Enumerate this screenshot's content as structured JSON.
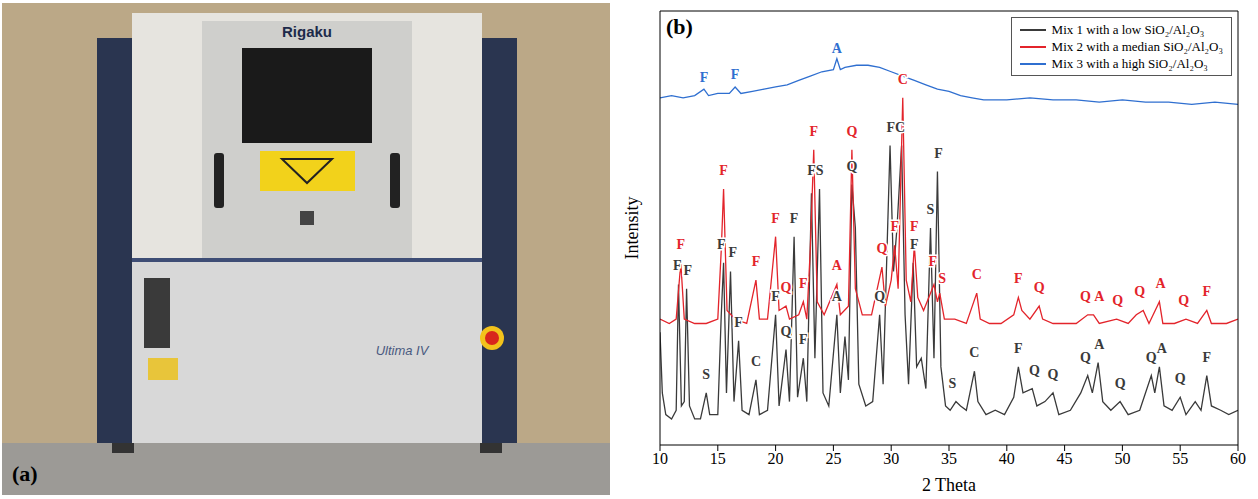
{
  "photo": {
    "label": "(a)",
    "brand": "Rigaku",
    "model": "Ultima IV"
  },
  "chart_label": "(b)",
  "chart_data": {
    "type": "line",
    "x_label": "2 Theta",
    "y_label": "Intensity",
    "xlim": [
      10,
      60
    ],
    "xticks": [
      10,
      15,
      20,
      25,
      30,
      35,
      40,
      45,
      50,
      55,
      60
    ],
    "ylim": [
      0,
      100
    ],
    "grid": false,
    "legend": "upper right",
    "tick_labels": "x",
    "series": [
      {
        "name": "Mix 1 with a low SiO₂/Al₂O₃",
        "color": "#3a3a3a",
        "x": [
          10,
          10.2,
          10.5,
          11,
          11.4,
          11.6,
          11.85,
          12.1,
          12.3,
          12.55,
          13,
          13.5,
          14,
          14.3,
          15,
          15.3,
          15.5,
          15.75,
          16.1,
          16.4,
          16.8,
          17.1,
          17.7,
          18.3,
          18.6,
          19.3,
          20,
          20.3,
          20.9,
          21.2,
          21.6,
          21.9,
          22.4,
          22.7,
          23.1,
          23.4,
          23.8,
          24.1,
          24.6,
          25.3,
          25.6,
          26,
          26.3,
          26.6,
          26.9,
          27.2,
          27.8,
          28.4,
          29,
          29.3,
          29.9,
          30.2,
          30.5,
          30.9,
          31.2,
          31.5,
          31.9,
          32.2,
          32.6,
          33,
          33.4,
          33.7,
          34,
          34.3,
          34.7,
          35.1,
          35.6,
          36,
          36.5,
          37.2,
          37.5,
          38.2,
          39,
          39.8,
          40.6,
          41,
          41.4,
          42.2,
          42.6,
          43.3,
          44,
          44.5,
          45.5,
          46.4,
          47,
          47.4,
          47.9,
          48.3,
          49,
          49.8,
          50.5,
          51.5,
          52.5,
          52.8,
          53.2,
          53.6,
          54.3,
          55,
          55.5,
          56.3,
          56.8,
          57.3,
          57.7,
          58.5,
          59.2,
          60
        ],
        "values": [
          26,
          12,
          7,
          6,
          8,
          37,
          9,
          10,
          36,
          9,
          6,
          6,
          12,
          7,
          7,
          30,
          42,
          12,
          40,
          10,
          24,
          8,
          7,
          15,
          7,
          8,
          30,
          9,
          22,
          10,
          48,
          11,
          20,
          10,
          58,
          20,
          59,
          12,
          9,
          30,
          12,
          25,
          15,
          60,
          50,
          14,
          9,
          10,
          30,
          14,
          69,
          40,
          50,
          69,
          30,
          14,
          42,
          18,
          20,
          13,
          50,
          20,
          63,
          18,
          9,
          8,
          10,
          9,
          8,
          17,
          10,
          7,
          8,
          7,
          11,
          18,
          12,
          13,
          9,
          10,
          12,
          7,
          8,
          12,
          16,
          12,
          19,
          10,
          8,
          10,
          7,
          8,
          16,
          12,
          18,
          9,
          8,
          11,
          7,
          10,
          8,
          16,
          9,
          8,
          7,
          8
        ],
        "annotations": [
          {
            "text": "F",
            "x": 11.5,
            "y": 40
          },
          {
            "text": "F",
            "x": 12.4,
            "y": 39
          },
          {
            "text": "S",
            "x": 14,
            "y": 15
          },
          {
            "text": "F",
            "x": 15.3,
            "y": 45
          },
          {
            "text": "F",
            "x": 16.3,
            "y": 43
          },
          {
            "text": "F",
            "x": 16.8,
            "y": 27
          },
          {
            "text": "C",
            "x": 18.3,
            "y": 18
          },
          {
            "text": "F",
            "x": 20,
            "y": 33
          },
          {
            "text": "Q",
            "x": 20.9,
            "y": 25
          },
          {
            "text": "F",
            "x": 21.6,
            "y": 51
          },
          {
            "text": "F",
            "x": 22.4,
            "y": 23
          },
          {
            "text": "FS",
            "x": 23.45,
            "y": 62
          },
          {
            "text": "A",
            "x": 25.3,
            "y": 33
          },
          {
            "text": "Q",
            "x": 26.6,
            "y": 63
          },
          {
            "text": "Q",
            "x": 29,
            "y": 33
          },
          {
            "text": "FC",
            "x": 30.4,
            "y": 72
          },
          {
            "text": "F",
            "x": 32,
            "y": 45
          },
          {
            "text": "S",
            "x": 33.4,
            "y": 53
          },
          {
            "text": "F",
            "x": 34.1,
            "y": 66
          },
          {
            "text": "S",
            "x": 35.3,
            "y": 13
          },
          {
            "text": "C",
            "x": 37.2,
            "y": 20
          },
          {
            "text": "F",
            "x": 41,
            "y": 21
          },
          {
            "text": "Q",
            "x": 42.4,
            "y": 16
          },
          {
            "text": "Q",
            "x": 44,
            "y": 15
          },
          {
            "text": "Q",
            "x": 46.8,
            "y": 19
          },
          {
            "text": "A",
            "x": 48,
            "y": 22
          },
          {
            "text": "Q",
            "x": 49.8,
            "y": 13
          },
          {
            "text": "Q",
            "x": 52.5,
            "y": 19
          },
          {
            "text": "A",
            "x": 53.4,
            "y": 21
          },
          {
            "text": "Q",
            "x": 55,
            "y": 14
          },
          {
            "text": "F",
            "x": 57.3,
            "y": 19
          }
        ]
      },
      {
        "name": "Mix 2 with a median SiO₂/Al₂O₃",
        "color": "#e3242b",
        "x": [
          10,
          10.8,
          11.4,
          11.8,
          12.1,
          13,
          14,
          15,
          15.3,
          15.5,
          15.8,
          16.5,
          17.5,
          18.3,
          18.6,
          19.3,
          20,
          20.3,
          20.9,
          21.2,
          22,
          22.4,
          22.7,
          23,
          23.3,
          23.6,
          24.2,
          25.3,
          25.6,
          26.3,
          26.6,
          26.9,
          27.5,
          28.3,
          29.2,
          29.5,
          30,
          30.3,
          30.6,
          31,
          31.3,
          31.7,
          32,
          32.3,
          32.8,
          33.7,
          34,
          34.2,
          34.6,
          35.5,
          36.5,
          37.4,
          37.7,
          38.5,
          39.5,
          40.6,
          41,
          41.3,
          42,
          42.8,
          43.1,
          44,
          45,
          46,
          47,
          47.5,
          48,
          49.5,
          50.5,
          51.2,
          51.8,
          52.3,
          53.2,
          53.5,
          54.5,
          55.5,
          56.5,
          57.3,
          57.7,
          59,
          60
        ],
        "values": [
          29,
          28,
          29,
          42,
          29,
          28,
          28,
          29,
          45,
          59,
          31,
          29,
          28,
          38,
          29,
          29,
          48,
          31,
          32,
          29,
          30,
          33,
          29,
          45,
          68,
          33,
          30,
          37,
          30,
          32,
          68,
          36,
          30,
          30,
          41,
          32,
          38,
          46,
          36,
          80,
          38,
          33,
          46,
          34,
          31,
          37,
          33,
          35,
          29,
          29,
          28,
          35,
          29,
          28,
          28,
          30,
          34,
          31,
          29,
          32,
          29,
          28,
          28,
          28,
          30,
          30,
          28,
          29,
          28,
          30,
          31,
          28,
          33,
          28,
          28,
          29,
          28,
          31,
          28,
          28,
          29
        ],
        "annotations": [
          {
            "text": "F",
            "x": 11.8,
            "y": 45
          },
          {
            "text": "F",
            "x": 15.5,
            "y": 62
          },
          {
            "text": "F",
            "x": 18.3,
            "y": 41
          },
          {
            "text": "F",
            "x": 20,
            "y": 51
          },
          {
            "text": "Q",
            "x": 20.9,
            "y": 35
          },
          {
            "text": "F",
            "x": 22.4,
            "y": 36
          },
          {
            "text": "F",
            "x": 23.3,
            "y": 71
          },
          {
            "text": "A",
            "x": 25.3,
            "y": 40
          },
          {
            "text": "Q",
            "x": 26.6,
            "y": 71
          },
          {
            "text": "Q",
            "x": 29.2,
            "y": 44
          },
          {
            "text": "F",
            "x": 30.3,
            "y": 49
          },
          {
            "text": "C",
            "x": 31,
            "y": 83
          },
          {
            "text": "F",
            "x": 32,
            "y": 49
          },
          {
            "text": "F",
            "x": 33.6,
            "y": 41
          },
          {
            "text": "S",
            "x": 34.4,
            "y": 37
          },
          {
            "text": "C",
            "x": 37.4,
            "y": 38
          },
          {
            "text": "F",
            "x": 41,
            "y": 37
          },
          {
            "text": "Q",
            "x": 42.8,
            "y": 35
          },
          {
            "text": "Q",
            "x": 46.8,
            "y": 33
          },
          {
            "text": "A",
            "x": 48,
            "y": 33
          },
          {
            "text": "Q",
            "x": 49.6,
            "y": 32
          },
          {
            "text": "Q",
            "x": 51.5,
            "y": 34
          },
          {
            "text": "A",
            "x": 53.3,
            "y": 36
          },
          {
            "text": "Q",
            "x": 55.3,
            "y": 32
          },
          {
            "text": "F",
            "x": 57.3,
            "y": 34
          }
        ]
      },
      {
        "name": "Mix 3 with a high SiO₂/Al₂O₃",
        "color": "#2f6fd0",
        "x": [
          10,
          11,
          12,
          13,
          13.8,
          14.2,
          15,
          16,
          16.5,
          17,
          18,
          19,
          20,
          21,
          22,
          23,
          24,
          25,
          25.3,
          25.6,
          26,
          27,
          28,
          29,
          30,
          31,
          32,
          33,
          34,
          35,
          36,
          37,
          38,
          40,
          42,
          44,
          46,
          48,
          50,
          52,
          54,
          56,
          58,
          60
        ],
        "values": [
          80,
          80.5,
          80,
          80.5,
          82,
          80.5,
          81,
          81,
          82.5,
          81,
          81.5,
          82,
          82.5,
          83,
          84,
          85,
          86,
          86.5,
          89,
          86.5,
          87,
          87.5,
          87.5,
          87,
          86,
          85,
          84,
          83,
          82,
          81.5,
          80.5,
          80,
          79.5,
          79.5,
          80,
          79.5,
          79.5,
          79,
          79.5,
          79,
          79,
          78.5,
          79,
          78.5
        ],
        "annotations": [
          {
            "text": "F",
            "x": 13.8,
            "y": 83.5
          },
          {
            "text": "F",
            "x": 16.5,
            "y": 84
          },
          {
            "text": "A",
            "x": 25.3,
            "y": 90
          }
        ]
      }
    ]
  }
}
